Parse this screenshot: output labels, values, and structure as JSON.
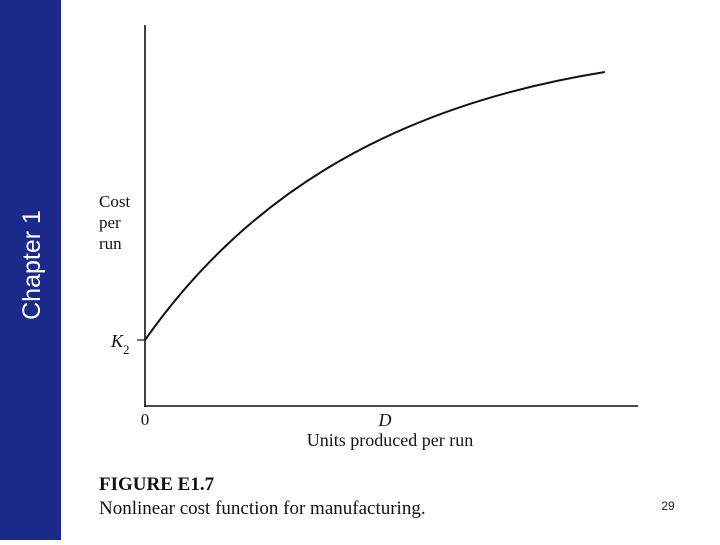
{
  "sidebar": {
    "label": "Chapter 1"
  },
  "figure": {
    "y_axis_label": [
      "Cost",
      "per",
      "run"
    ],
    "intercept_label": {
      "symbol": "K",
      "subscript": "2"
    },
    "origin_label": "0",
    "x_marker_label": "D",
    "x_axis_label": "Units produced per run",
    "caption_title": "FIGURE E1.7",
    "caption_text": "Nonlinear cost function for manufacturing."
  },
  "page_number": "29"
}
